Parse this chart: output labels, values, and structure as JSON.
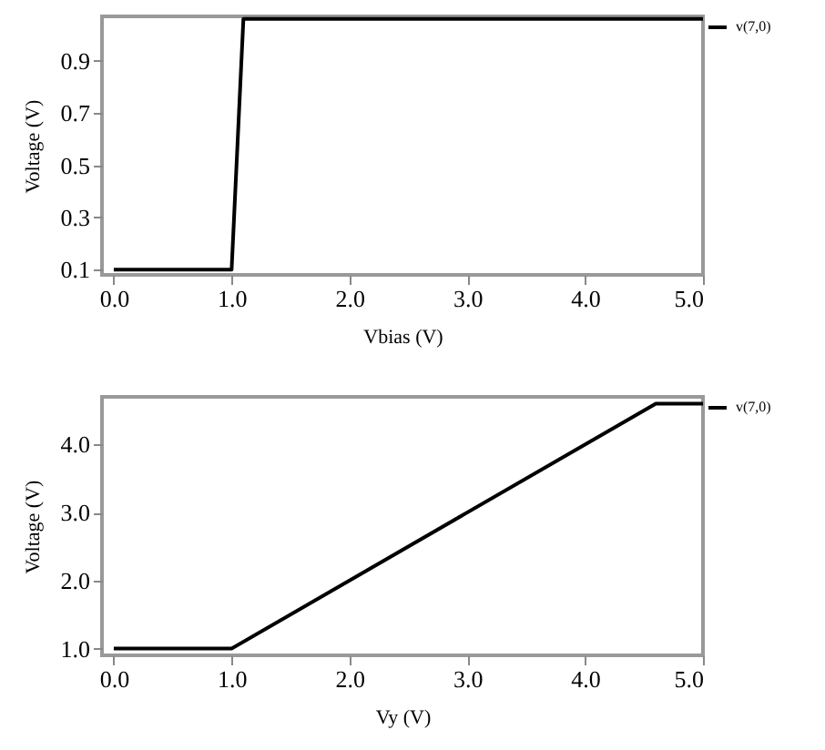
{
  "chart_data": [
    {
      "type": "line",
      "xlabel": "Vbias (V)",
      "ylabel": "Voltage (V)",
      "xlim": [
        -0.1,
        5.0
      ],
      "ylim": [
        0.08,
        1.07
      ],
      "xticks": [
        {
          "value": 0,
          "label": "0.0"
        },
        {
          "value": 1,
          "label": "1.0"
        },
        {
          "value": 2,
          "label": "2.0"
        },
        {
          "value": 3,
          "label": "3.0"
        },
        {
          "value": 4,
          "label": "4.0"
        },
        {
          "value": 5,
          "label": "5.0"
        }
      ],
      "yticks": [
        0.1,
        0.3,
        0.5,
        0.7,
        0.9
      ],
      "grid": false,
      "legend": "top right",
      "marker": "none",
      "line_style": "solid",
      "series": [
        {
          "name": "v(7,0)",
          "color": "#000000",
          "x": [
            0,
            1.0,
            1.1,
            5.0
          ],
          "values": [
            0.1,
            0.1,
            1.06,
            1.06
          ]
        }
      ]
    },
    {
      "type": "line",
      "xlabel": "Vy (V)",
      "ylabel": "Voltage (V)",
      "xlim": [
        -0.1,
        5.0
      ],
      "ylim": [
        0.9,
        4.7
      ],
      "xticks": [
        {
          "value": 0,
          "label": "0.0"
        },
        {
          "value": 1,
          "label": "1.0"
        },
        {
          "value": 2,
          "label": "2.0"
        },
        {
          "value": 3,
          "label": "3.0"
        },
        {
          "value": 4,
          "label": "4.0"
        },
        {
          "value": 5,
          "label": "5.0"
        }
      ],
      "yticks": [
        {
          "value": 1,
          "label": "1.0"
        },
        {
          "value": 2,
          "label": "2.0"
        },
        {
          "value": 3,
          "label": "3.0"
        },
        {
          "value": 4,
          "label": "4.0"
        }
      ],
      "grid": false,
      "legend": "top right",
      "marker": "none",
      "line_style": "solid",
      "series": [
        {
          "name": "v(7,0)",
          "color": "#000000",
          "x": [
            0,
            1.0,
            4.6,
            5.0
          ],
          "values": [
            1.0,
            1.0,
            4.6,
            4.6
          ]
        }
      ]
    }
  ]
}
